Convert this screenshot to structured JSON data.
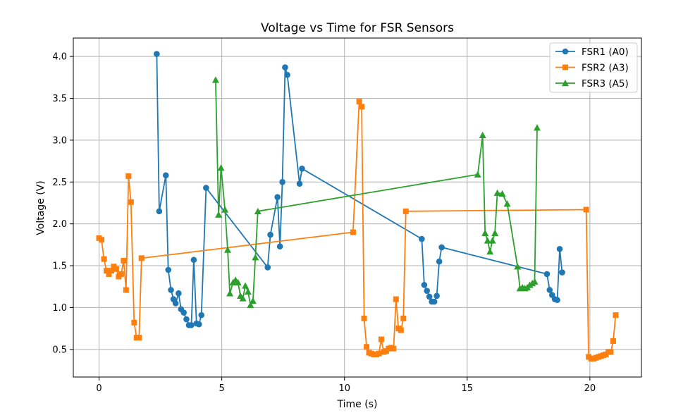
{
  "chart_data": {
    "type": "line",
    "title": "Voltage vs Time for FSR Sensors",
    "xlabel": "Time (s)",
    "ylabel": "Voltage (V)",
    "xlim": [
      -1.05,
      22.1
    ],
    "ylim": [
      0.17,
      4.22
    ],
    "xticks": [
      0,
      5,
      10,
      15,
      20
    ],
    "yticks": [
      0.5,
      1.0,
      1.5,
      2.0,
      2.5,
      3.0,
      3.5,
      4.0
    ],
    "xtick_labels": [
      "0",
      "5",
      "10",
      "15",
      "20"
    ],
    "ytick_labels": [
      "0.5",
      "1.0",
      "1.5",
      "2.0",
      "2.5",
      "3.0",
      "3.5",
      "4.0"
    ],
    "grid": true,
    "legend_position": "top-right",
    "series": [
      {
        "name": "FSR1 (A0)",
        "color": "#1f77b4",
        "marker": "circle",
        "x": [
          2.35,
          2.45,
          2.72,
          2.82,
          2.93,
          3.03,
          3.12,
          3.24,
          3.34,
          3.45,
          3.56,
          3.66,
          3.76,
          3.86,
          3.97,
          4.07,
          4.17,
          4.36,
          6.87,
          6.98,
          7.27,
          7.37,
          7.47,
          7.58,
          7.67,
          8.17,
          8.27,
          13.15,
          13.25,
          13.36,
          13.46,
          13.56,
          13.66,
          13.76,
          13.86,
          13.96,
          18.25,
          18.36,
          18.46,
          18.57,
          18.67,
          18.77,
          18.87
        ],
        "y": [
          4.03,
          2.15,
          2.58,
          1.45,
          1.21,
          1.1,
          1.05,
          1.17,
          0.98,
          0.94,
          0.86,
          0.79,
          0.79,
          1.57,
          0.81,
          0.8,
          0.91,
          2.43,
          1.48,
          1.87,
          2.32,
          1.73,
          2.5,
          3.87,
          3.78,
          2.48,
          2.66,
          1.82,
          1.27,
          1.2,
          1.13,
          1.07,
          1.07,
          1.14,
          1.55,
          1.72,
          1.4,
          1.21,
          1.15,
          1.1,
          1.09,
          1.7,
          1.42
        ]
      },
      {
        "name": "FSR2 (A3)",
        "color": "#ff7f0e",
        "marker": "square",
        "x": [
          0.0,
          0.1,
          0.2,
          0.3,
          0.4,
          0.5,
          0.6,
          0.7,
          0.8,
          0.9,
          1.0,
          1.1,
          1.2,
          1.3,
          1.43,
          1.53,
          1.63,
          1.73,
          10.35,
          10.6,
          10.7,
          10.8,
          10.9,
          11.0,
          11.1,
          11.2,
          11.3,
          11.4,
          11.5,
          11.6,
          11.7,
          11.8,
          11.9,
          12.0,
          12.1,
          12.2,
          12.3,
          12.4,
          12.5,
          19.85,
          19.95,
          20.05,
          20.15,
          20.25,
          20.35,
          20.45,
          20.55,
          20.65,
          20.75,
          20.85,
          20.95,
          21.05
        ],
        "y": [
          1.83,
          1.81,
          1.58,
          1.44,
          1.4,
          1.44,
          1.49,
          1.46,
          1.37,
          1.4,
          1.56,
          1.21,
          2.57,
          2.26,
          0.82,
          0.64,
          0.64,
          1.59,
          1.9,
          3.46,
          3.4,
          0.87,
          0.53,
          0.46,
          0.45,
          0.44,
          0.44,
          0.45,
          0.62,
          0.47,
          0.48,
          0.51,
          0.52,
          0.51,
          1.1,
          0.75,
          0.73,
          0.87,
          2.15,
          2.17,
          0.41,
          0.39,
          0.39,
          0.4,
          0.41,
          0.42,
          0.43,
          0.44,
          0.47,
          0.47,
          0.6,
          0.91
        ]
      },
      {
        "name": "FSR3 (A5)",
        "color": "#2ca02c",
        "marker": "triangle",
        "x": [
          4.75,
          4.87,
          4.97,
          5.13,
          5.24,
          5.33,
          5.46,
          5.56,
          5.66,
          5.76,
          5.86,
          5.96,
          6.07,
          6.17,
          6.27,
          6.37,
          6.47,
          15.43,
          15.63,
          15.73,
          15.83,
          15.93,
          16.03,
          16.13,
          16.23,
          16.43,
          16.63,
          17.05,
          17.15,
          17.25,
          17.35,
          17.45,
          17.55,
          17.65,
          17.75,
          17.85
        ],
        "y": [
          3.72,
          2.11,
          2.67,
          2.17,
          1.69,
          1.17,
          1.3,
          1.33,
          1.3,
          1.14,
          1.11,
          1.26,
          1.19,
          1.03,
          1.08,
          1.6,
          2.15,
          2.59,
          3.06,
          1.89,
          1.8,
          1.67,
          1.8,
          1.89,
          2.37,
          2.36,
          2.24,
          1.49,
          1.23,
          1.24,
          1.23,
          1.24,
          1.27,
          1.29,
          1.31,
          3.15
        ]
      }
    ]
  }
}
